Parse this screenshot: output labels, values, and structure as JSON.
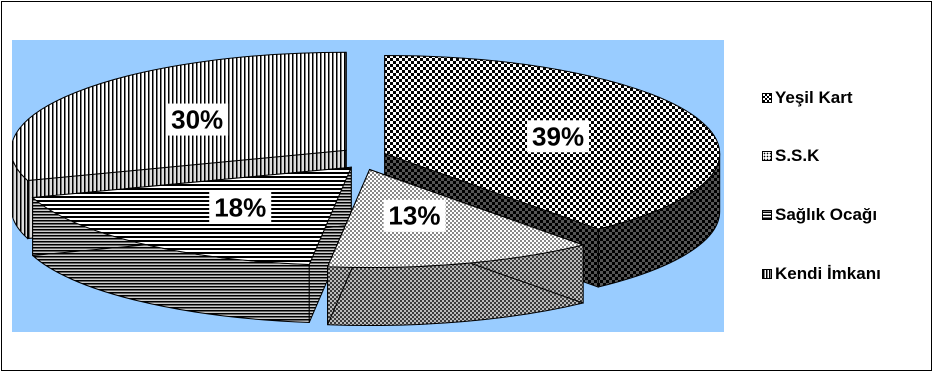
{
  "chart_data": {
    "type": "pie",
    "categories": [
      "Yeşil Kart",
      "S.S.K",
      "Sağlık Ocağı",
      "Kendi İmkanı"
    ],
    "values": [
      39,
      13,
      18,
      30
    ],
    "data_labels": [
      "39%",
      "13%",
      "18%",
      "30%"
    ],
    "legend_position": "right",
    "exploded": true,
    "three_d": true
  },
  "colors": {
    "plot_background": "#99ccff",
    "slice_fill": "#ffffff",
    "pattern_ink": "#000000"
  }
}
